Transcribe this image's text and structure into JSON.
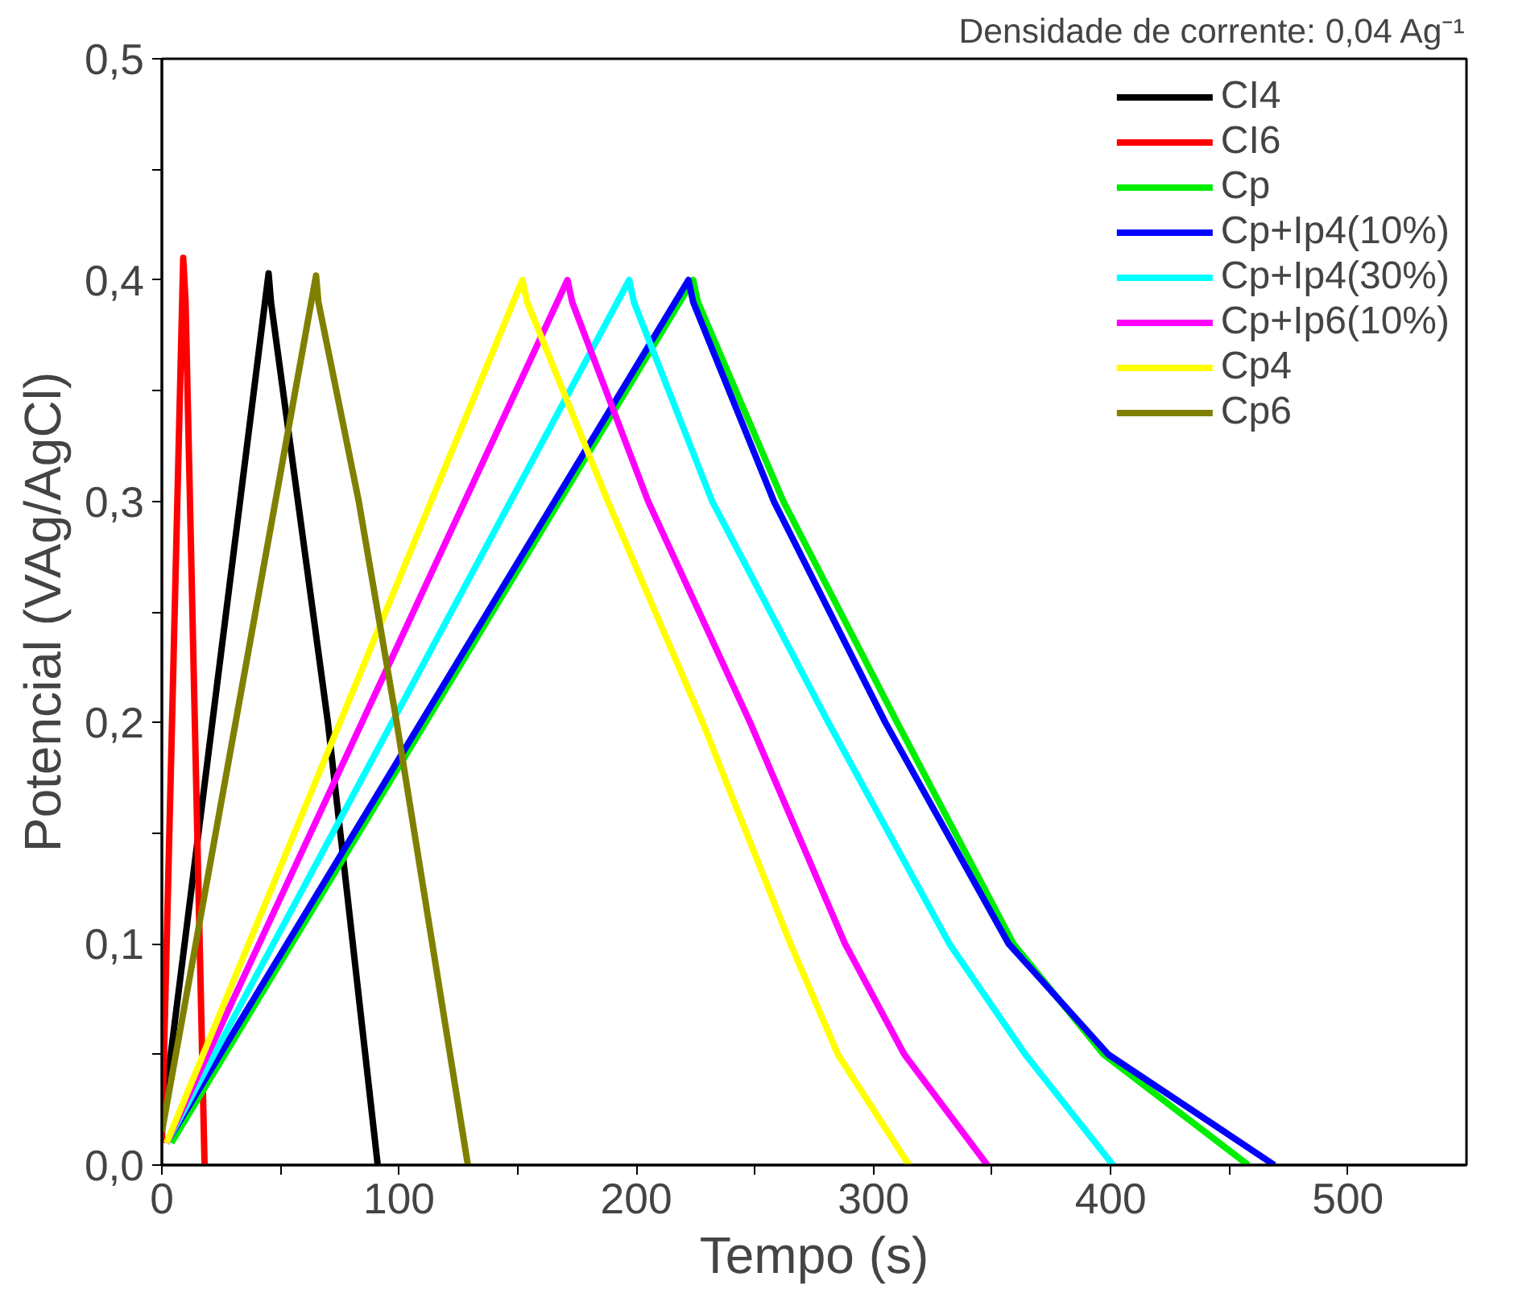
{
  "chart_data": {
    "type": "line",
    "xlabel": "Tempo (s)",
    "ylabel": "Potencial (VAg/AgCl)",
    "annotations": [
      "Densidade de corrente: 0,04 Ag⁻¹"
    ],
    "xlim": [
      0,
      550
    ],
    "ylim": [
      0,
      0.5
    ],
    "xticks": [
      0,
      {
        "value": 50,
        "label": null
      },
      100,
      {
        "value": 150,
        "label": null
      },
      200,
      {
        "value": 250,
        "label": null
      },
      300,
      {
        "value": 350,
        "label": null
      },
      400,
      {
        "value": 450,
        "label": null
      },
      500
    ],
    "yticks": [
      {
        "value": 0,
        "label": "0,0"
      },
      {
        "value": 0.05,
        "label": null
      },
      {
        "value": 0.1,
        "label": "0,1"
      },
      {
        "value": 0.15,
        "label": null
      },
      {
        "value": 0.2,
        "label": "0,2"
      },
      {
        "value": 0.25,
        "label": null
      },
      {
        "value": 0.3,
        "label": "0,3"
      },
      {
        "value": 0.35,
        "label": null
      },
      {
        "value": 0.4,
        "label": "0,4"
      },
      {
        "value": 0.45,
        "label": null
      },
      {
        "value": 0.5,
        "label": "0,5"
      }
    ],
    "grid": false,
    "legend": "top right",
    "marker": "none",
    "line_style": "solid",
    "series": [
      {
        "name": "CI4",
        "color": "#000000",
        "x": [
          0,
          45,
          46,
          70,
          91
        ],
        "values": [
          0.018,
          0.403,
          0.39,
          0.2,
          0
        ]
      },
      {
        "name": "CI6",
        "color": "#ff0000",
        "x": [
          0,
          9,
          10,
          18
        ],
        "values": [
          0.01,
          0.41,
          0.39,
          0
        ]
      },
      {
        "name": "Cp",
        "color": "#00ee00",
        "x": [
          4,
          224,
          226,
          262,
          310,
          359,
          397,
          458
        ],
        "values": [
          0.01,
          0.4,
          0.39,
          0.3,
          0.2,
          0.1,
          0.05,
          0
        ]
      },
      {
        "name": "Cp+Ip4(10%)",
        "color": "#0000ff",
        "x": [
          2,
          222,
          224,
          258,
          305,
          357,
          399,
          469
        ],
        "values": [
          0.01,
          0.4,
          0.39,
          0.3,
          0.2,
          0.1,
          0.05,
          0
        ]
      },
      {
        "name": "Cp+Ip4(30%)",
        "color": "#00ffff",
        "x": [
          2,
          197,
          199,
          232,
          281,
          332,
          364,
          401
        ],
        "values": [
          0.01,
          0.4,
          0.39,
          0.3,
          0.2,
          0.1,
          0.05,
          0
        ]
      },
      {
        "name": "Cp+Ip6(10%)",
        "color": "#ff00ff",
        "x": [
          2,
          171,
          173,
          205,
          248,
          288,
          313,
          348
        ],
        "values": [
          0.01,
          0.4,
          0.39,
          0.3,
          0.2,
          0.1,
          0.05,
          0
        ]
      },
      {
        "name": "Cp4",
        "color": "#ffff00",
        "x": [
          2,
          152,
          154,
          188,
          228,
          265,
          285,
          315
        ],
        "values": [
          0.01,
          0.4,
          0.39,
          0.3,
          0.2,
          0.1,
          0.05,
          0
        ]
      },
      {
        "name": "Cp6",
        "color": "#808000",
        "x": [
          0,
          65,
          66,
          83,
          99,
          114,
          129
        ],
        "values": [
          0.015,
          0.402,
          0.39,
          0.3,
          0.2,
          0.1,
          0
        ]
      }
    ]
  }
}
